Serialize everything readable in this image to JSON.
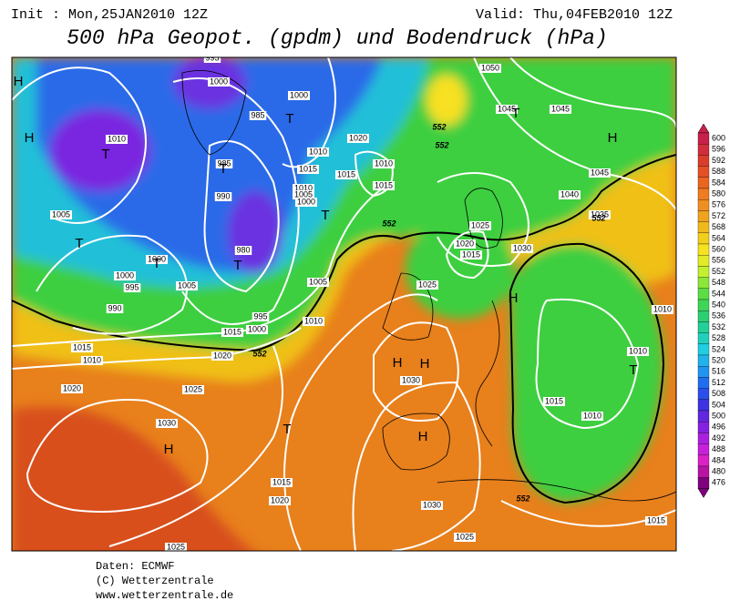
{
  "header": {
    "init": "Init : Mon,25JAN2010 12Z",
    "valid": "Valid: Thu,04FEB2010 12Z",
    "title": "500 hPa Geopot. (gpdm) und Bodendruck (hPa)"
  },
  "colorbar": {
    "labels": [
      600,
      596,
      592,
      588,
      584,
      580,
      576,
      572,
      568,
      564,
      560,
      556,
      552,
      548,
      544,
      540,
      536,
      532,
      528,
      524,
      520,
      516,
      512,
      508,
      504,
      500,
      496,
      492,
      488,
      484,
      480,
      476
    ]
  },
  "isobar_labels": [
    "1050",
    "1045",
    "1045",
    "1020",
    "1010",
    "1015",
    "1015",
    "1010",
    "1015",
    "1010",
    "1005",
    "1000",
    "1045",
    "1040",
    "1035",
    "1025",
    "1020",
    "1015",
    "1030",
    "1025",
    "1005",
    "1010",
    "1015",
    "1020",
    "1010",
    "1010",
    "1015",
    "1010",
    "1030",
    "1025",
    "1015",
    "1010",
    "1020",
    "1030",
    "1015",
    "1020",
    "1030",
    "1015",
    "1025",
    "1025",
    "1005",
    "1000",
    "1000",
    "995",
    "990",
    "1005",
    "995",
    "1000",
    "1010",
    "985",
    "1000",
    "1000",
    "990",
    "980",
    "985",
    "995"
  ],
  "pressure_centers": [
    "H",
    "H",
    "T",
    "T",
    "T",
    "H",
    "T",
    "T",
    "T",
    "T",
    "T",
    "H",
    "T",
    "H",
    "H",
    "T",
    "H",
    "H"
  ],
  "height_labels": [
    "552",
    "552",
    "552",
    "552",
    "552",
    "552"
  ],
  "footer": [
    "Daten: ECMWF",
    "(C) Wetterzentrale",
    "www.wetterzentrale.de"
  ]
}
